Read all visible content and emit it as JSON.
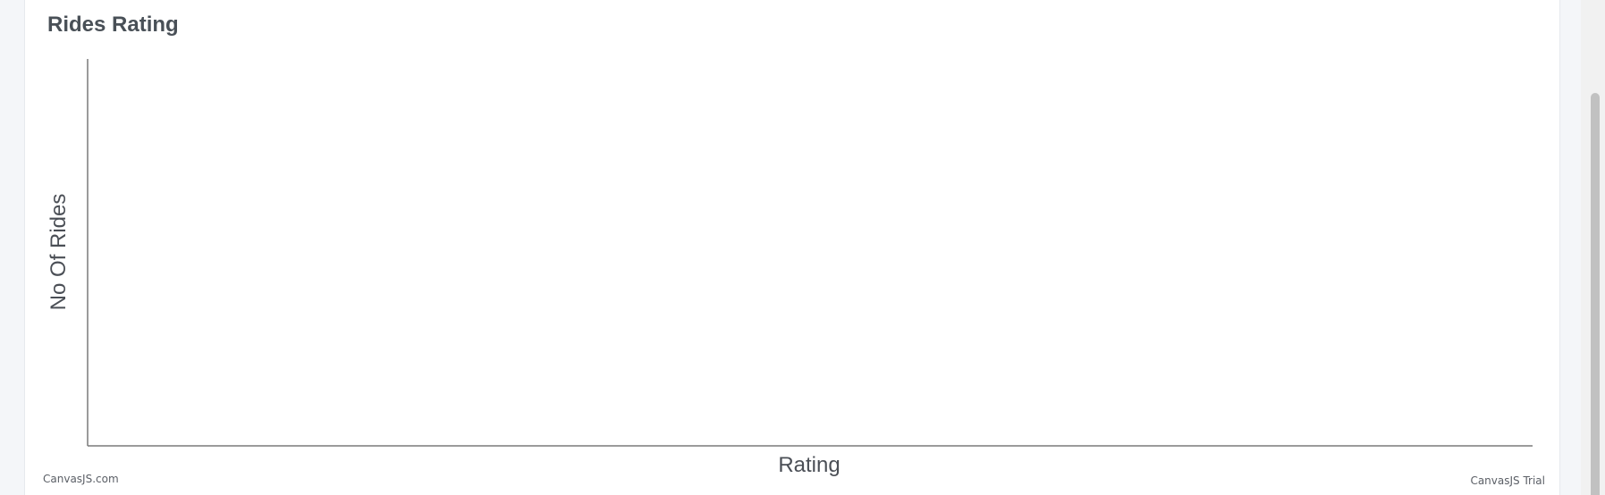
{
  "card": {
    "title": "Rides Rating"
  },
  "chart_data": {
    "type": "bar",
    "title": "Rides Rating",
    "xlabel": "Rating",
    "ylabel": "No Of Rides",
    "categories": [],
    "values": [],
    "grid": false,
    "legend": "none"
  },
  "credits": {
    "left": "CanvasJS.com",
    "right": "CanvasJS Trial"
  },
  "colors": {
    "axis": "#7a7a7a",
    "title": "#495057",
    "background": "#ffffff"
  }
}
